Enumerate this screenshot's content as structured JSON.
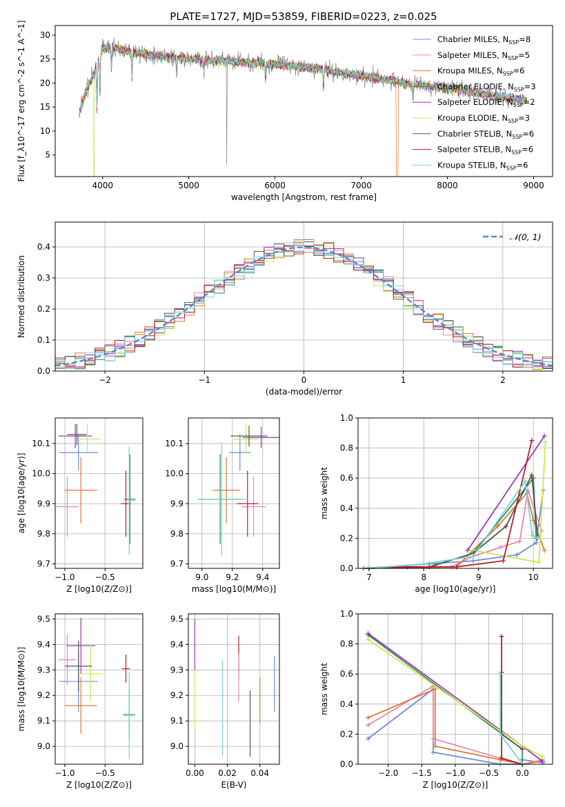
{
  "figure": {
    "title": "PLATE=1727, MJD=53859, FIBERID=0223, z=0.025"
  },
  "series": [
    {
      "name": "Chabrier MILES",
      "nssp": "8",
      "color": "#6a8bdc"
    },
    {
      "name": "Salpeter MILES",
      "nssp": "5",
      "color": "#e787b6"
    },
    {
      "name": "Kroupa MILES",
      "nssp": "6",
      "color": "#e0782f"
    },
    {
      "name": "Chabrier ELODIE",
      "nssp": "3",
      "color": "#2e8b57"
    },
    {
      "name": "Salpeter ELODIE",
      "nssp": "2",
      "color": "#9a34b8"
    },
    {
      "name": "Kroupa ELODIE",
      "nssp": "3",
      "color": "#c6ea4a"
    },
    {
      "name": "Chabrier STELIB",
      "nssp": "6",
      "color": "#555555"
    },
    {
      "name": "Salpeter STELIB",
      "nssp": "6",
      "color": "#b81d1d"
    },
    {
      "name": "Kroupa STELIB",
      "nssp": "6",
      "color": "#78d4d8"
    }
  ],
  "chart_data": [
    {
      "id": "spectrum",
      "type": "line",
      "xlabel": "wavelength [Angstrom, rest frame]",
      "ylabel": "Flux [f_λ10^-17 erg cm^-2 s^-1 A^-1]",
      "xlim": [
        3450,
        9220
      ],
      "ylim": [
        0.5,
        32
      ],
      "xticks": [
        4000,
        5000,
        6000,
        7000,
        8000,
        9000
      ],
      "yticks": [
        5,
        10,
        15,
        20,
        25,
        30
      ],
      "grid": false,
      "legend": "top-right",
      "continuum_x": [
        3720,
        3800,
        3900,
        4000,
        4100,
        4200,
        4500,
        5000,
        5500,
        6000,
        6500,
        7000,
        7500,
        8000,
        8500,
        8900
      ],
      "continuum_y": [
        13,
        18,
        22,
        27,
        27.5,
        27,
        26,
        25,
        24.5,
        24,
        23,
        21.5,
        20,
        19,
        17.5,
        16.5
      ],
      "x_range": [
        3730,
        8920
      ]
    },
    {
      "id": "residuals",
      "type": "histogram",
      "xlabel": "(data-model)/error",
      "ylabel": "Normed distribution",
      "xlim": [
        -2.5,
        2.5
      ],
      "ylim": [
        0,
        0.48
      ],
      "xticks": [
        -2,
        -1,
        0,
        1,
        2
      ],
      "yticks": [
        0.0,
        0.1,
        0.2,
        0.3,
        0.4
      ],
      "grid": true,
      "legend": "top-right",
      "reference_curve": "𝒩(0, 1)",
      "bin_width": 0.1
    },
    {
      "id": "age_vs_Z",
      "type": "errorbar",
      "xlabel": "Z [log10(Z/Z⊙)]",
      "ylabel": "age [log10(age/yr)]",
      "xlim": [
        -1.12,
        -0.03
      ],
      "ylim": [
        9.685,
        10.185
      ],
      "xticks": [
        -1.0,
        -0.5
      ],
      "yticks": [
        9.7,
        9.8,
        9.9,
        10.0,
        10.1
      ],
      "grid": true,
      "points": [
        {
          "x": -0.83,
          "xerr": 0.24,
          "y": 10.07,
          "yerr": 0.06
        },
        {
          "x": -0.97,
          "xerr": 0.14,
          "y": 9.89,
          "yerr": 0.1
        },
        {
          "x": -0.8,
          "xerr": 0.2,
          "y": 9.945,
          "yerr": 0.11
        },
        {
          "x": -0.19,
          "xerr": 0.07,
          "y": 9.915,
          "yerr": 0.15
        },
        {
          "x": -0.87,
          "xerr": 0.21,
          "y": 10.125,
          "yerr": 0.04
        },
        {
          "x": -0.72,
          "xerr": 0.15,
          "y": 10.115,
          "yerr": 0.05
        },
        {
          "x": -0.85,
          "xerr": 0.12,
          "y": 10.13,
          "yerr": 0.035
        },
        {
          "x": -0.24,
          "xerr": 0.06,
          "y": 9.9,
          "yerr": 0.11
        },
        {
          "x": -0.2,
          "xerr": 0.075,
          "y": 9.91,
          "yerr": 0.18
        }
      ]
    },
    {
      "id": "age_vs_mass",
      "type": "errorbar",
      "xlabel": "mass [log10(M/M⊙)]",
      "ylabel": "",
      "xlim": [
        8.91,
        9.51
      ],
      "ylim": [
        9.685,
        10.185
      ],
      "xticks": [
        9.0,
        9.2,
        9.4
      ],
      "yticks": [
        9.7,
        9.8,
        9.9,
        10.0,
        10.1
      ],
      "grid": true,
      "points": [
        {
          "x": 9.25,
          "xerr": 0.07,
          "y": 10.07,
          "yerr": 0.06
        },
        {
          "x": 9.34,
          "xerr": 0.08,
          "y": 9.89,
          "yerr": 0.1
        },
        {
          "x": 9.16,
          "xerr": 0.09,
          "y": 9.945,
          "yerr": 0.11
        },
        {
          "x": 9.12,
          "xerr": 0.14,
          "y": 9.915,
          "yerr": 0.15
        },
        {
          "x": 9.39,
          "xerr": 0.12,
          "y": 10.12,
          "yerr": 0.035
        },
        {
          "x": 9.29,
          "xerr": 0.08,
          "y": 10.115,
          "yerr": 0.05
        },
        {
          "x": 9.31,
          "xerr": 0.12,
          "y": 10.125,
          "yerr": 0.035
        },
        {
          "x": 9.3,
          "xerr": 0.07,
          "y": 9.9,
          "yerr": 0.11
        },
        {
          "x": 9.13,
          "xerr": 0.16,
          "y": 9.915,
          "yerr": 0.19
        }
      ]
    },
    {
      "id": "weight_vs_age",
      "type": "line",
      "xlabel": "age [log10(age/yr)]",
      "ylabel": "mass weight",
      "xlim": [
        6.8,
        10.35
      ],
      "ylim": [
        0,
        1
      ],
      "xticks": [
        7,
        8,
        9,
        10
      ],
      "yticks": [
        0.0,
        0.2,
        0.4,
        0.6,
        0.8,
        1.0
      ],
      "grid": true,
      "series": [
        {
          "x": [
            6.9,
            8.1,
            8.9,
            9.7,
            10.05,
            10.18
          ],
          "y": [
            0.0,
            0.03,
            0.05,
            0.09,
            0.17,
            0.52
          ]
        },
        {
          "x": [
            6.9,
            8.5,
            8.9,
            9.4,
            9.75,
            9.9,
            10.15
          ],
          "y": [
            0.0,
            0.01,
            0.08,
            0.14,
            0.18,
            0.52,
            0.25
          ]
        },
        {
          "x": [
            6.9,
            8.6,
            8.9,
            9.35,
            9.88,
            10.0,
            10.2
          ],
          "y": [
            0.0,
            0.01,
            0.12,
            0.28,
            0.5,
            0.32,
            0.12
          ]
        },
        {
          "x": [
            8.2,
            8.9,
            10.0,
            10.05
          ],
          "y": [
            0.02,
            0.1,
            0.6,
            0.2
          ]
        },
        {
          "x": [
            8.8,
            10.2
          ],
          "y": [
            0.12,
            0.88
          ]
        },
        {
          "x": [
            8.9,
            10.1,
            10.22
          ],
          "y": [
            0.12,
            0.04,
            0.84
          ]
        },
        {
          "x": [
            7.0,
            8.1,
            8.9,
            9.5,
            9.97,
            10.08
          ],
          "y": [
            0.0,
            0.01,
            0.1,
            0.28,
            0.62,
            0.2
          ]
        },
        {
          "x": [
            7.0,
            7.7,
            8.6,
            9.45,
            9.97
          ],
          "y": [
            0.0,
            0.01,
            0.01,
            0.05,
            0.85
          ]
        },
        {
          "x": [
            7.0,
            8.0,
            8.9,
            9.85,
            9.98,
            10.08
          ],
          "y": [
            0.0,
            0.03,
            0.08,
            0.58,
            0.22,
            0.2
          ]
        }
      ]
    },
    {
      "id": "mass_vs_Z",
      "type": "errorbar",
      "xlabel": "Z [log10(Z/Z⊙)]",
      "ylabel": "mass [log10(M/M⊙)]",
      "xlim": [
        -1.12,
        -0.03
      ],
      "ylim": [
        8.93,
        9.52
      ],
      "xticks": [
        -1.0,
        -0.5
      ],
      "yticks": [
        9.0,
        9.1,
        9.2,
        9.3,
        9.4,
        9.5
      ],
      "grid": true,
      "points": [
        {
          "x": -0.83,
          "xerr": 0.24,
          "y": 9.255,
          "yerr": 0.12
        },
        {
          "x": -0.97,
          "xerr": 0.11,
          "y": 9.34,
          "yerr": 0.1
        },
        {
          "x": -0.8,
          "xerr": 0.2,
          "y": 9.16,
          "yerr": 0.11
        },
        {
          "x": -0.2,
          "xerr": 0.075,
          "y": 9.125,
          "yerr": 0.1
        },
        {
          "x": -0.8,
          "xerr": 0.18,
          "y": 9.395,
          "yerr": 0.11
        },
        {
          "x": -0.68,
          "xerr": 0.15,
          "y": 9.285,
          "yerr": 0.11
        },
        {
          "x": -0.83,
          "xerr": 0.17,
          "y": 9.315,
          "yerr": 0.1
        },
        {
          "x": -0.24,
          "xerr": 0.05,
          "y": 9.305,
          "yerr": 0.055
        },
        {
          "x": -0.2,
          "xerr": 0.07,
          "y": 9.12,
          "yerr": 0.17
        }
      ]
    },
    {
      "id": "mass_vs_ebv",
      "type": "errorbar",
      "xlabel": "E(B-V)",
      "ylabel": "",
      "xlim": [
        -0.004,
        0.052
      ],
      "ylim": [
        8.93,
        9.52
      ],
      "xticks": [
        0.0,
        0.02,
        0.04
      ],
      "yticks": [
        9.0,
        9.1,
        9.2,
        9.3,
        9.4,
        9.5
      ],
      "grid": true,
      "points": [
        {
          "x": 0.0,
          "xerr": 0,
          "y": 9.4,
          "yerr": 0.1
        },
        {
          "x": 0.0,
          "xerr": 0,
          "y": 9.18,
          "yerr": 0.12
        },
        {
          "x": 0.017,
          "xerr": 0,
          "y": 9.15,
          "yerr": 0.19
        },
        {
          "x": 0.027,
          "xerr": 0,
          "y": 9.36,
          "yerr": 0.075
        },
        {
          "x": 0.027,
          "xerr": 0,
          "y": 9.27,
          "yerr": 0.095
        },
        {
          "x": 0.034,
          "xerr": 0,
          "y": 9.09,
          "yerr": 0.13
        },
        {
          "x": 0.04,
          "xerr": 0,
          "y": 9.18,
          "yerr": 0.09
        },
        {
          "x": 0.049,
          "xerr": 0,
          "y": 9.245,
          "yerr": 0.11
        }
      ]
    },
    {
      "id": "weight_vs_Z",
      "type": "line",
      "xlabel": "Z [log10(Z/Z⊙)]",
      "ylabel": "mass weight",
      "xlim": [
        -2.45,
        0.45
      ],
      "ylim": [
        0,
        1
      ],
      "xticks": [
        -2.0,
        -1.5,
        -1.0,
        -0.5,
        0.0
      ],
      "yticks": [
        0.0,
        0.2,
        0.4,
        0.6,
        0.8,
        1.0
      ],
      "grid": true,
      "series": [
        {
          "x": [
            -2.3,
            -1.33,
            -1.33,
            -0.33,
            0.0,
            0.0,
            0.3
          ],
          "y": [
            0.17,
            0.5,
            0.08,
            0.0,
            0.0,
            0.03,
            0.01
          ]
        },
        {
          "x": [
            -2.3,
            -1.33,
            -1.33,
            -0.33,
            0.0,
            0.3
          ],
          "y": [
            0.26,
            0.52,
            0.17,
            0.04,
            0.0,
            0.03
          ]
        },
        {
          "x": [
            -2.3,
            -1.3,
            -1.3,
            -0.33,
            0.0,
            0.3
          ],
          "y": [
            0.31,
            0.5,
            0.12,
            0.03,
            0.0,
            0.02
          ]
        },
        {
          "x": [
            -2.3,
            0.0,
            0.0
          ],
          "y": [
            0.86,
            0.1,
            0.0
          ]
        },
        {
          "x": [
            -2.3,
            0.0,
            0.3
          ],
          "y": [
            0.87,
            0.12,
            0.02
          ]
        },
        {
          "x": [
            -2.3,
            0.0,
            0.3
          ],
          "y": [
            0.83,
            0.12,
            0.05
          ]
        },
        {
          "x": [
            -0.31,
            -0.31,
            0.0
          ],
          "y": [
            0.61,
            0.2,
            0.1
          ]
        },
        {
          "x": [
            -0.31,
            -0.31,
            0.0
          ],
          "y": [
            0.85,
            0.04,
            0.0
          ]
        },
        {
          "x": [
            -0.33,
            -0.33,
            0.0
          ],
          "y": [
            0.6,
            0.2,
            0.0
          ]
        }
      ]
    }
  ]
}
